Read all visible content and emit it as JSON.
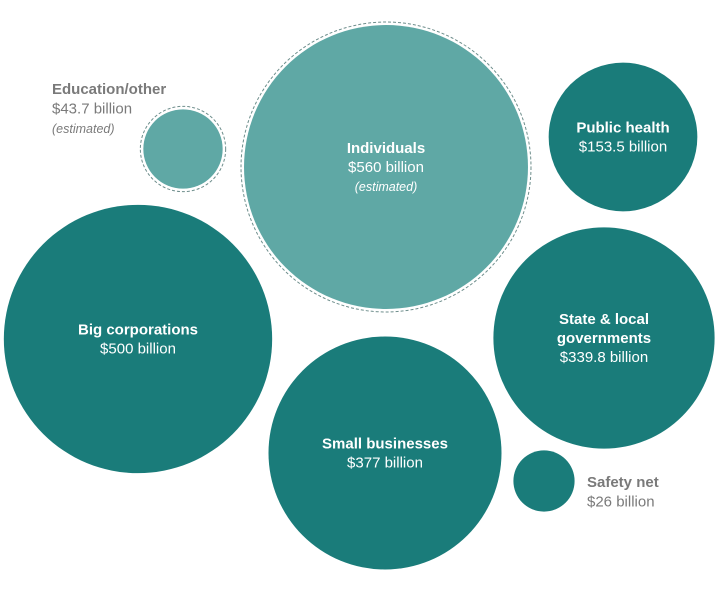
{
  "chart_data": {
    "type": "bubble",
    "units": "billion USD",
    "series": [
      {
        "name": "Individuals",
        "value_label": "$560 billion",
        "note": "(estimated)",
        "value": 560,
        "estimated": true,
        "color": "#5fa8a5",
        "label_position": "inside"
      },
      {
        "name": "Big corporations",
        "value_label": "$500 billion",
        "note": "",
        "value": 500,
        "estimated": false,
        "color": "#1a7c7a",
        "label_position": "inside"
      },
      {
        "name": "Small businesses",
        "value_label": "$377 billion",
        "note": "",
        "value": 377,
        "estimated": false,
        "color": "#1a7c7a",
        "label_position": "inside"
      },
      {
        "name": "State & local governments",
        "name_lines": [
          "State & local",
          "governments"
        ],
        "value_label": "$339.8 billion",
        "note": "",
        "value": 339.8,
        "estimated": false,
        "color": "#1a7c7a",
        "label_position": "inside"
      },
      {
        "name": "Public health",
        "value_label": "$153.5 billion",
        "note": "",
        "value": 153.5,
        "estimated": false,
        "color": "#1a7c7a",
        "label_position": "inside"
      },
      {
        "name": "Education/other",
        "value_label": "$43.7 billion",
        "note": "(estimated)",
        "value": 43.7,
        "estimated": true,
        "color": "#5fa8a5",
        "label_position": "outside-left"
      },
      {
        "name": "Safety net",
        "value_label": "$26 billion",
        "note": "",
        "value": 26,
        "estimated": false,
        "color": "#1a7c7a",
        "label_position": "outside-right"
      }
    ],
    "colors": {
      "confirmed": "#1a7c7a",
      "estimated": "#5fa8a5",
      "inside_label_text": "#ffffff",
      "outside_label_text": "#7a7a7a",
      "estimated_outline": "#6e8e8c"
    }
  }
}
